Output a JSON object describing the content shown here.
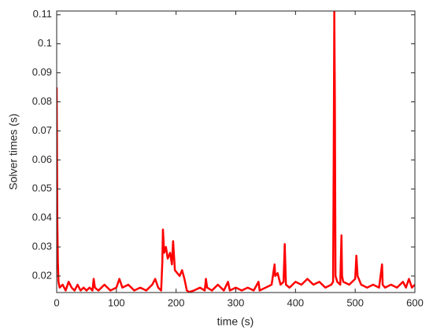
{
  "chart_data": {
    "type": "line",
    "xlabel": "time (s)",
    "ylabel": "Solver times (s)",
    "x": [
      0,
      1,
      2,
      3,
      5,
      10,
      15,
      20,
      25,
      30,
      35,
      40,
      45,
      50,
      55,
      60,
      62,
      64,
      70,
      80,
      90,
      100,
      105,
      110,
      120,
      130,
      140,
      150,
      160,
      165,
      170,
      175,
      177,
      178,
      180,
      183,
      186,
      190,
      193,
      195,
      198,
      202,
      206,
      210,
      214,
      218,
      222,
      230,
      240,
      248,
      250,
      252,
      260,
      270,
      280,
      287,
      290,
      300,
      310,
      320,
      330,
      338,
      340,
      350,
      360,
      365,
      366,
      370,
      375,
      380,
      382,
      384,
      390,
      400,
      410,
      420,
      430,
      440,
      450,
      460,
      463,
      464,
      465,
      466,
      467,
      470,
      475,
      477,
      478,
      480,
      490,
      500,
      502,
      504,
      510,
      520,
      530,
      540,
      545,
      546,
      550,
      560,
      570,
      580,
      585,
      590,
      595,
      600
    ],
    "series": [
      {
        "color": "#ff0000",
        "values": [
          0.085,
          0.04,
          0.025,
          0.018,
          0.016,
          0.017,
          0.015,
          0.018,
          0.016,
          0.015,
          0.017,
          0.015,
          0.016,
          0.015,
          0.016,
          0.015,
          0.019,
          0.016,
          0.015,
          0.017,
          0.015,
          0.016,
          0.019,
          0.016,
          0.017,
          0.015,
          0.016,
          0.015,
          0.017,
          0.019,
          0.016,
          0.015,
          0.025,
          0.036,
          0.028,
          0.03,
          0.026,
          0.028,
          0.024,
          0.032,
          0.022,
          0.021,
          0.02,
          0.022,
          0.019,
          0.015,
          0.0145,
          0.015,
          0.016,
          0.015,
          0.019,
          0.016,
          0.015,
          0.017,
          0.015,
          0.018,
          0.015,
          0.016,
          0.015,
          0.016,
          0.015,
          0.018,
          0.015,
          0.016,
          0.017,
          0.024,
          0.02,
          0.021,
          0.017,
          0.018,
          0.031,
          0.017,
          0.016,
          0.018,
          0.017,
          0.019,
          0.017,
          0.018,
          0.016,
          0.017,
          0.018,
          0.06,
          0.111,
          0.08,
          0.02,
          0.018,
          0.017,
          0.034,
          0.02,
          0.018,
          0.017,
          0.019,
          0.027,
          0.02,
          0.017,
          0.016,
          0.017,
          0.016,
          0.024,
          0.017,
          0.016,
          0.017,
          0.016,
          0.018,
          0.016,
          0.019,
          0.016,
          0.017
        ]
      }
    ],
    "xlim": [
      0,
      600
    ],
    "xticks": [
      0,
      100,
      200,
      300,
      400,
      500,
      600
    ],
    "ylim": [
      0.0143,
      0.1113
    ],
    "yticks": [
      0.02,
      0.03,
      0.04,
      0.05,
      0.06,
      0.07,
      0.08,
      0.09,
      0.1,
      0.11
    ]
  }
}
